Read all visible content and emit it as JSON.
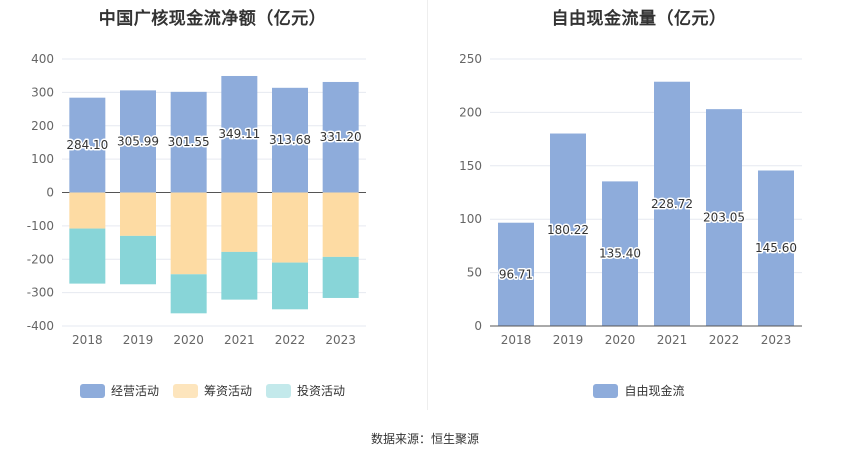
{
  "source": "数据来源：恒生聚源",
  "chart_data": [
    {
      "type": "bar",
      "stacked": true,
      "title": "中国广核现金流净额（亿元）",
      "categories": [
        "2018",
        "2019",
        "2020",
        "2021",
        "2022",
        "2023"
      ],
      "ylim": [
        -400,
        400
      ],
      "yticks": [
        -400,
        -300,
        -200,
        -100,
        0,
        100,
        200,
        300,
        400
      ],
      "legend_position": "bottom",
      "series": [
        {
          "name": "经营活动",
          "color": "#8eacdb",
          "values": [
            284.1,
            305.99,
            301.55,
            349.11,
            313.68,
            331.2
          ],
          "labels": [
            "284.10",
            "305.99",
            "301.55",
            "349.11",
            "313.68",
            "331.20"
          ]
        },
        {
          "name": "筹资活动",
          "color": "#fddba3",
          "values": [
            -108,
            -130,
            -245,
            -178,
            -210,
            -193
          ]
        },
        {
          "name": "投资活动",
          "color": "#88d5d8",
          "values": [
            -165,
            -145,
            -117,
            -143,
            -140,
            -123
          ]
        }
      ]
    },
    {
      "type": "bar",
      "title": "自由现金流量（亿元）",
      "categories": [
        "2018",
        "2019",
        "2020",
        "2021",
        "2022",
        "2023"
      ],
      "ylim": [
        0,
        250
      ],
      "yticks": [
        0,
        50,
        100,
        150,
        200,
        250
      ],
      "legend_position": "bottom",
      "series": [
        {
          "name": "自由现金流",
          "color": "#8eacdb",
          "values": [
            96.71,
            180.22,
            135.4,
            228.72,
            203.05,
            145.6
          ],
          "labels": [
            "96.71",
            "180.22",
            "135.40",
            "228.72",
            "203.05",
            "145.60"
          ]
        }
      ]
    }
  ]
}
